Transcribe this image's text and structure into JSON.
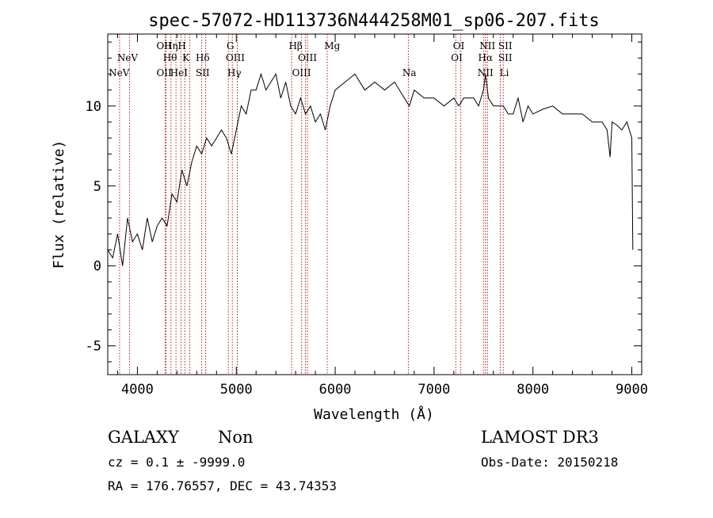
{
  "chart_data": {
    "type": "line",
    "title": "spec-57072-HD113736N444258M01_sp06-207.fits",
    "xlabel": "Wavelength (Å)",
    "ylabel": "Flux (relative)",
    "xlim": [
      3700,
      9100
    ],
    "ylim": [
      -6.8,
      14.5
    ],
    "xticks": [
      4000,
      5000,
      6000,
      7000,
      8000,
      9000
    ],
    "yticks": [
      -5,
      0,
      5,
      10
    ],
    "grid": false,
    "series": [
      {
        "x": [
          3700,
          3750,
          3800,
          3850,
          3900,
          3950,
          4000,
          4050,
          4100,
          4150,
          4200,
          4250,
          4300,
          4350,
          4400,
          4450,
          4500,
          4550,
          4600,
          4650,
          4700,
          4750,
          4800,
          4850,
          4900,
          4950,
          5000,
          5050,
          5100,
          5150,
          5200,
          5250,
          5300,
          5350,
          5400,
          5450,
          5500,
          5550,
          5600,
          5650,
          5700,
          5750,
          5800,
          5850,
          5900,
          5950,
          6000,
          6100,
          6200,
          6300,
          6400,
          6500,
          6600,
          6700,
          6750,
          6800,
          6900,
          7000,
          7100,
          7200,
          7250,
          7300,
          7400,
          7450,
          7500,
          7520,
          7550,
          7600,
          7700,
          7750,
          7800,
          7850,
          7900,
          7950,
          8000,
          8100,
          8200,
          8300,
          8400,
          8500,
          8600,
          8700,
          8750,
          8780,
          8800,
          8850,
          8900,
          8950,
          9000,
          9010
        ],
        "values": [
          1.0,
          0.5,
          2.0,
          0.0,
          3.0,
          1.5,
          2.0,
          1.0,
          3.0,
          1.5,
          2.5,
          3.0,
          2.5,
          4.5,
          4.0,
          6.0,
          5.0,
          6.5,
          7.5,
          7.0,
          8.0,
          7.5,
          8.0,
          8.5,
          8.0,
          7.0,
          8.5,
          10.0,
          9.5,
          11.0,
          11.0,
          12.0,
          11.0,
          11.5,
          12.0,
          10.5,
          11.5,
          10.0,
          9.5,
          10.5,
          9.5,
          10.0,
          9.0,
          9.5,
          8.5,
          10.0,
          11.0,
          11.5,
          12.0,
          11.0,
          11.5,
          11.0,
          11.5,
          10.5,
          10.0,
          11.0,
          10.5,
          10.5,
          10.0,
          10.5,
          10.0,
          10.5,
          10.5,
          10.0,
          11.0,
          12.0,
          10.5,
          10.0,
          10.0,
          9.5,
          9.5,
          10.5,
          9.0,
          10.0,
          9.5,
          9.8,
          10.0,
          9.5,
          9.5,
          9.5,
          9.0,
          9.0,
          8.5,
          6.8,
          9.0,
          8.8,
          8.5,
          9.0,
          8.0,
          1.0
        ]
      }
    ],
    "line_markers": [
      {
        "label": "NeV",
        "x": 3815,
        "row": 2
      },
      {
        "label": "NeV",
        "x": 3900,
        "row": 1
      },
      {
        "label": "OII",
        "x": 4270,
        "row": 0
      },
      {
        "label": "Hη",
        "x": 4340,
        "row": 0
      },
      {
        "label": "H",
        "x": 4450,
        "row": 0
      },
      {
        "label": "Hθ",
        "x": 4330,
        "row": 1
      },
      {
        "label": "K",
        "x": 4490,
        "row": 1
      },
      {
        "label": "Hδ",
        "x": 4660,
        "row": 1
      },
      {
        "label": "OII",
        "x": 4270,
        "row": 2
      },
      {
        "label": "HeI",
        "x": 4420,
        "row": 2
      },
      {
        "label": "SII",
        "x": 4660,
        "row": 2
      },
      {
        "label": "G",
        "x": 4940,
        "row": 0
      },
      {
        "label": "OIII",
        "x": 4990,
        "row": 1
      },
      {
        "label": "Hγ",
        "x": 4980,
        "row": 2
      },
      {
        "label": "Hβ",
        "x": 5600,
        "row": 0
      },
      {
        "label": "OIII",
        "x": 5720,
        "row": 1
      },
      {
        "label": "OIII",
        "x": 5660,
        "row": 2
      },
      {
        "label": "Mg",
        "x": 5970,
        "row": 0
      },
      {
        "label": "Na",
        "x": 6750,
        "row": 2
      },
      {
        "label": "OI",
        "x": 7250,
        "row": 0
      },
      {
        "label": "OI",
        "x": 7230,
        "row": 1
      },
      {
        "label": "NII",
        "x": 7540,
        "row": 0
      },
      {
        "label": "SII",
        "x": 7720,
        "row": 0
      },
      {
        "label": "Hα",
        "x": 7520,
        "row": 1
      },
      {
        "label": "SII",
        "x": 7720,
        "row": 1
      },
      {
        "label": "NII",
        "x": 7520,
        "row": 2
      },
      {
        "label": "Li",
        "x": 7710,
        "row": 2
      }
    ],
    "line_positions": [
      3820,
      3920,
      4280,
      4290,
      4340,
      4390,
      4440,
      4480,
      4530,
      4650,
      4690,
      4920,
      4960,
      5010,
      5560,
      5660,
      5700,
      5720,
      5920,
      6740,
      7220,
      7270,
      7500,
      7520,
      7540,
      7670,
      7700
    ]
  },
  "info": {
    "left_line1_a": "GALAXY",
    "left_line1_b": "Non",
    "left_line2": "cz = 0.1 ± -9999.0",
    "left_line3": "RA = 176.76557, DEC =  43.74353",
    "right_line1": "LAMOST DR3",
    "right_line2": "Obs-Date: 20150218"
  },
  "colors": {
    "spectrum": "#000000",
    "marker": "#b22222"
  }
}
